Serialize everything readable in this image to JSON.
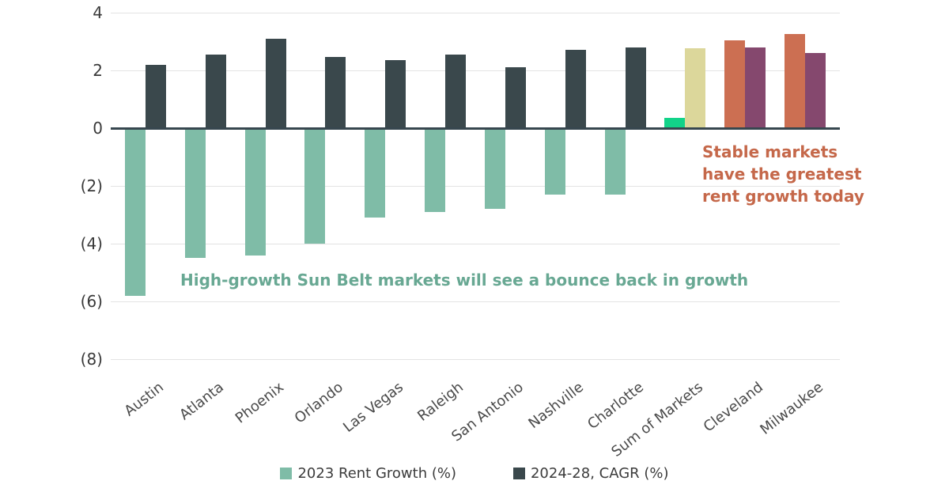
{
  "chart_data": {
    "type": "bar",
    "title": "",
    "xlabel": "",
    "ylabel": "",
    "categories": [
      "Austin",
      "Atlanta",
      "Phoenix",
      "Orlando",
      "Las Vegas",
      "Raleigh",
      "San Antonio",
      "Nashville",
      "Charlotte",
      "Sum of Markets",
      "Cleveland",
      "Milwaukee"
    ],
    "series": [
      {
        "name": "2023 Rent Growth (%)",
        "default_color": "#7fbca7",
        "values": [
          -5.8,
          -4.5,
          -4.4,
          -4.0,
          -3.1,
          -2.9,
          -2.8,
          -2.3,
          -2.3,
          0.35,
          3.05,
          3.25
        ],
        "colors": [
          null,
          null,
          null,
          null,
          null,
          null,
          null,
          null,
          null,
          "#12d389",
          "#cc6f52",
          "#cc6f52"
        ]
      },
      {
        "name": "2024-28, CAGR (%)",
        "default_color": "#3a484c",
        "values": [
          2.2,
          2.55,
          3.1,
          2.45,
          2.35,
          2.55,
          2.1,
          2.7,
          2.8,
          2.75,
          2.8,
          2.6
        ],
        "colors": [
          null,
          null,
          null,
          null,
          null,
          null,
          null,
          null,
          null,
          "#dcd79b",
          "#85486e",
          "#85486e"
        ]
      }
    ],
    "y_axis": {
      "range": [
        -8,
        4
      ],
      "ticks": [
        {
          "value": 4,
          "label": "4"
        },
        {
          "value": 2,
          "label": "2"
        },
        {
          "value": 0,
          "label": "0"
        },
        {
          "value": -2,
          "label": "(2)"
        },
        {
          "value": -4,
          "label": "(4)"
        },
        {
          "value": -6,
          "label": "(6)"
        },
        {
          "value": -8,
          "label": "(8)"
        }
      ]
    },
    "grid": "horizontal",
    "legend_position": "bottom",
    "annotations": [
      {
        "id": "sunbelt",
        "lines": [
          "High-growth Sun Belt markets will see a bounce back in growth"
        ],
        "color": "#68a893"
      },
      {
        "id": "stable",
        "lines": [
          "Stable markets",
          "have the greatest",
          "rent growth today"
        ],
        "color": "#c5684a"
      }
    ],
    "legend": [
      {
        "label": "2023 Rent Growth (%)",
        "color": "#7fbca7"
      },
      {
        "label": "2024-28, CAGR (%)",
        "color": "#3a484c"
      }
    ]
  }
}
